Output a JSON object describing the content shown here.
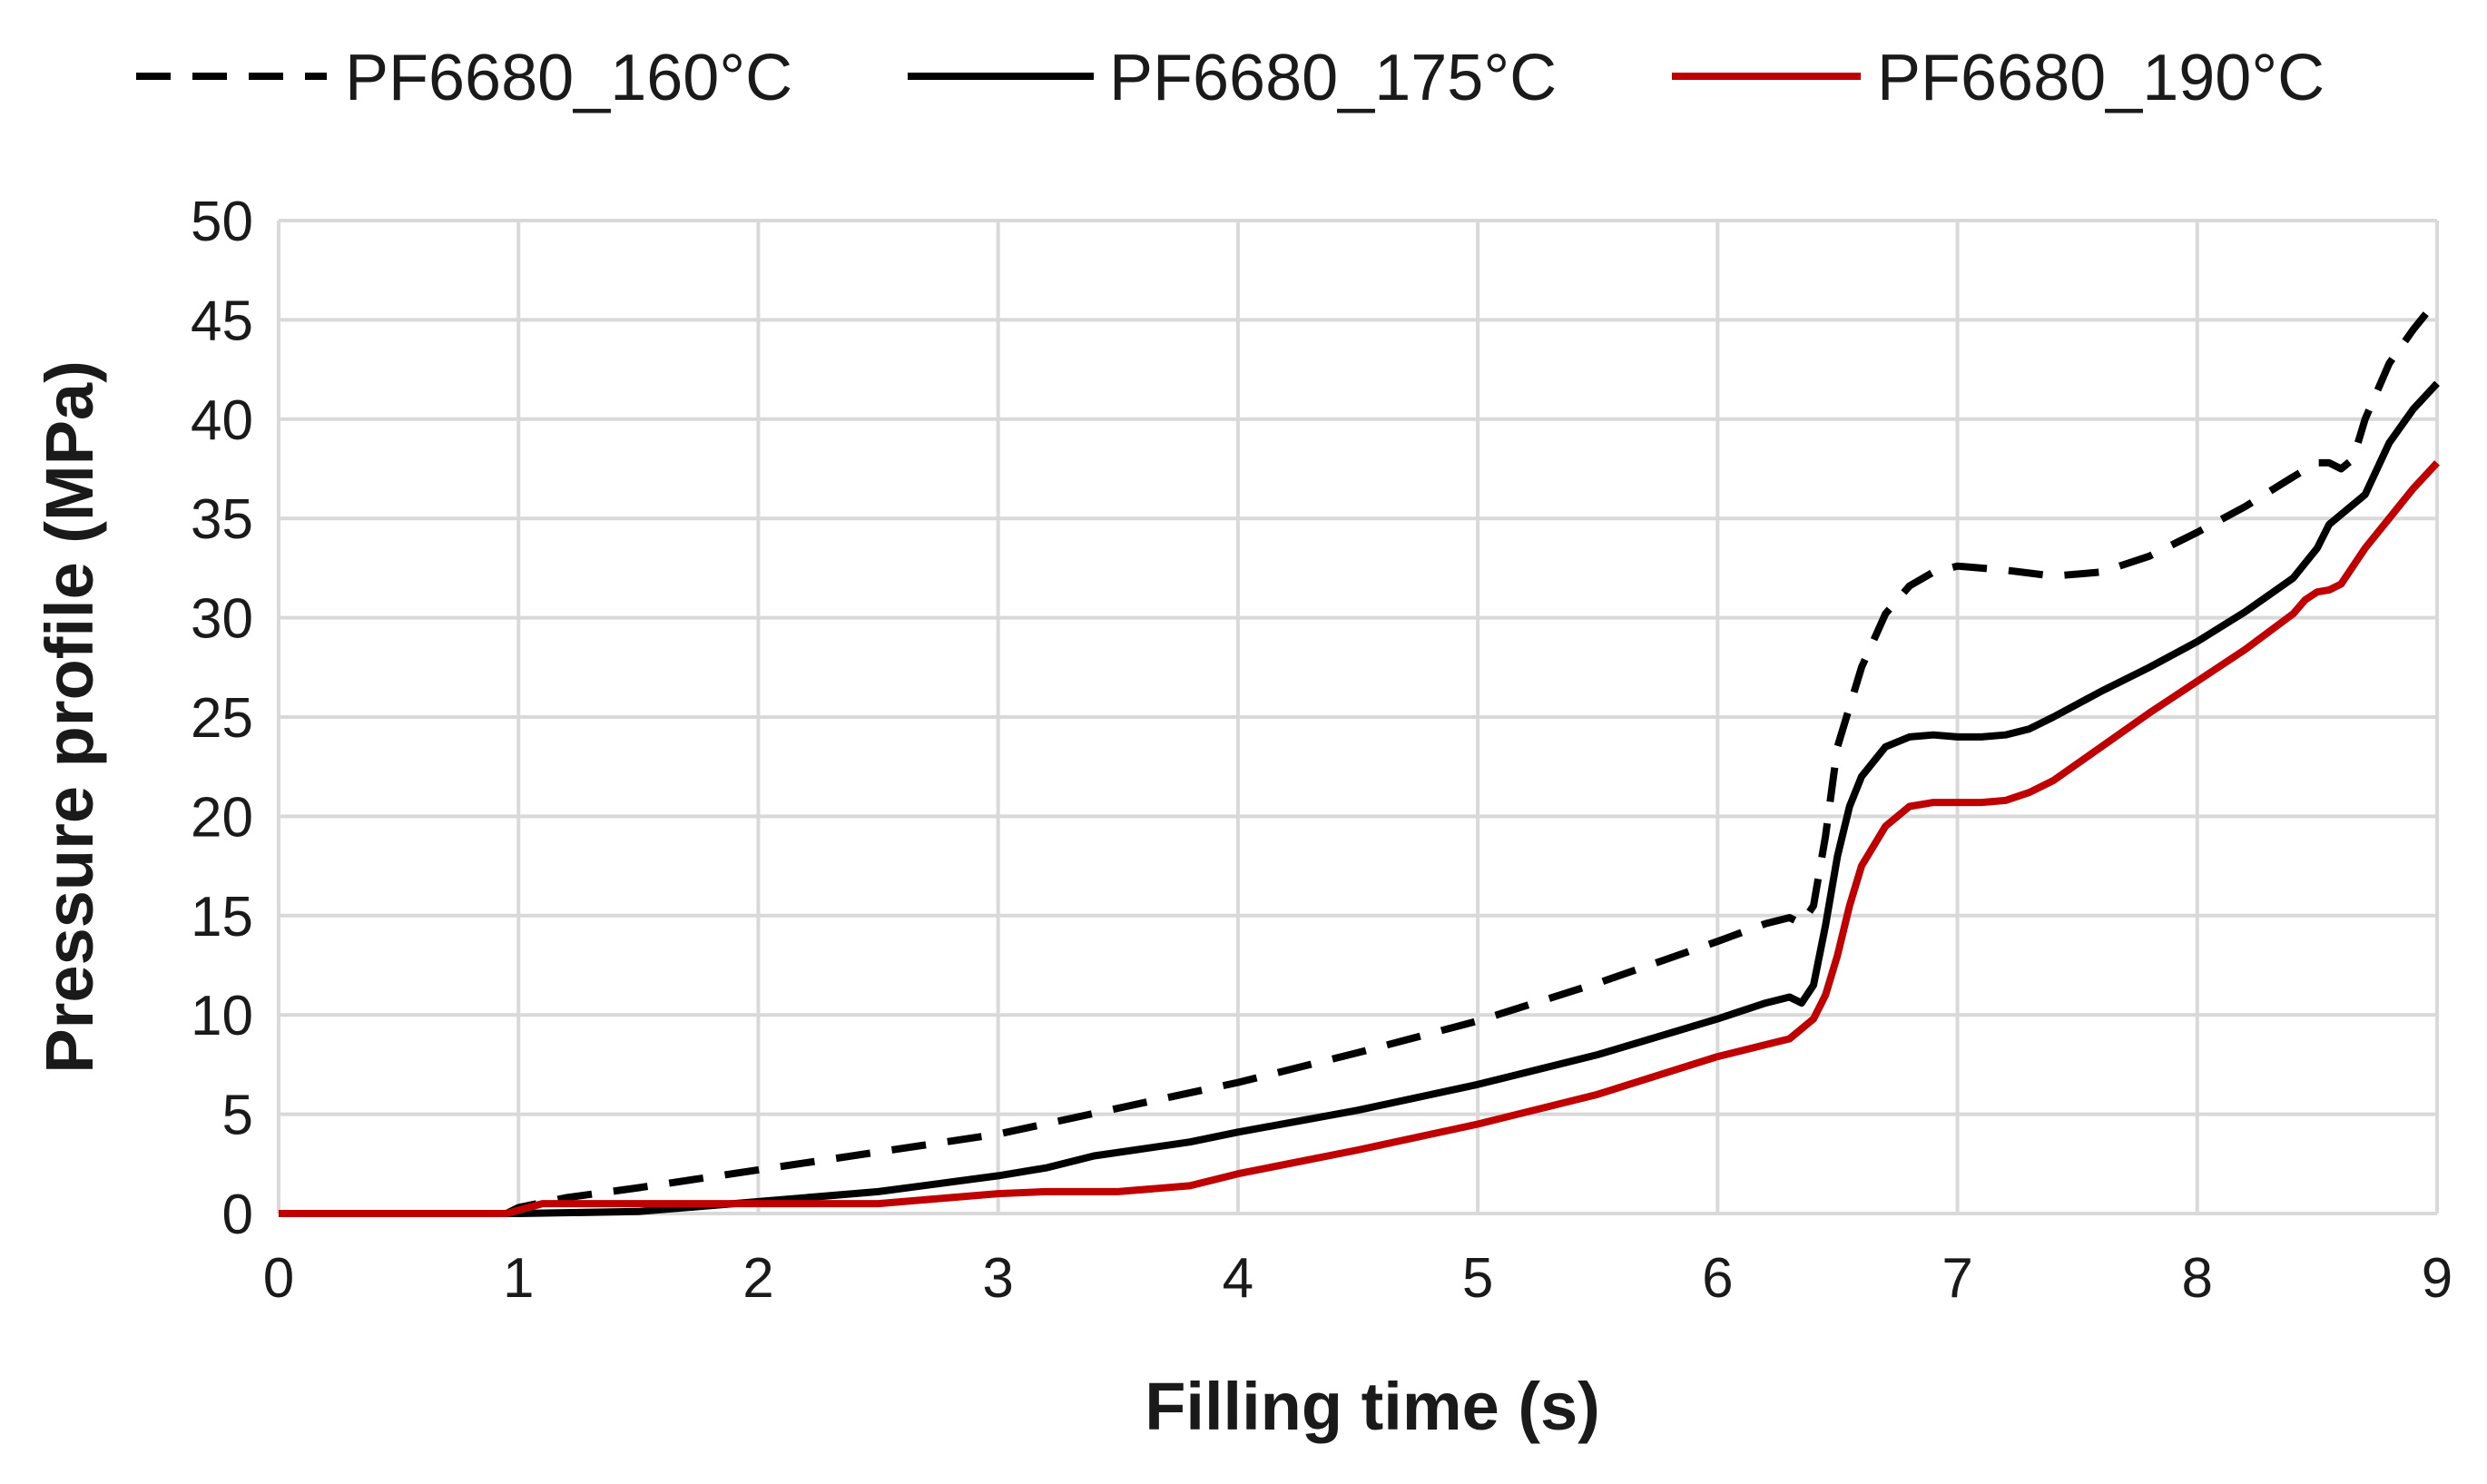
{
  "chart_data": {
    "type": "line",
    "title": "",
    "xlabel": "Filling time (s)",
    "ylabel": "Pressure profile (MPa)",
    "xlim": [
      0,
      9
    ],
    "ylim": [
      0,
      50
    ],
    "x_ticks": [
      "0",
      "1",
      "2",
      "3",
      "4",
      "5",
      "6",
      "7",
      "8",
      "9"
    ],
    "y_ticks": [
      "0",
      "5",
      "10",
      "15",
      "20",
      "25",
      "30",
      "35",
      "40",
      "45",
      "50"
    ],
    "grid": true,
    "legend_position": "top",
    "series": [
      {
        "name": "PF6680_160°C",
        "color": "#000000",
        "style": "dashed",
        "x": [
          0,
          0.95,
          1.0,
          1.2,
          1.5,
          2.0,
          2.5,
          3.0,
          3.5,
          4.0,
          4.5,
          5.0,
          5.5,
          6.0,
          6.2,
          6.3,
          6.35,
          6.4,
          6.45,
          6.5,
          6.6,
          6.7,
          6.8,
          6.9,
          7.0,
          7.2,
          7.4,
          7.6,
          7.8,
          8.0,
          8.2,
          8.4,
          8.5,
          8.55,
          8.6,
          8.65,
          8.7,
          8.8,
          8.9,
          9.0
        ],
        "y": [
          0,
          0,
          0.3,
          0.8,
          1.3,
          2.2,
          3.1,
          4.0,
          5.3,
          6.6,
          8.1,
          9.7,
          11.6,
          13.7,
          14.6,
          14.9,
          14.6,
          15.5,
          19.0,
          23.5,
          27.5,
          30.2,
          31.6,
          32.3,
          32.6,
          32.4,
          32.1,
          32.3,
          33.1,
          34.3,
          35.6,
          37.1,
          37.8,
          37.8,
          37.5,
          38.0,
          40.0,
          42.8,
          44.5,
          46.0
        ]
      },
      {
        "name": "PF6680_175°C",
        "color": "#000000",
        "style": "solid",
        "x": [
          0,
          1.0,
          1.5,
          2.0,
          2.5,
          3.0,
          3.2,
          3.4,
          3.8,
          4.0,
          4.5,
          5.0,
          5.5,
          6.0,
          6.2,
          6.3,
          6.35,
          6.4,
          6.45,
          6.5,
          6.55,
          6.6,
          6.7,
          6.8,
          6.9,
          7.0,
          7.1,
          7.2,
          7.3,
          7.4,
          7.6,
          7.8,
          8.0,
          8.2,
          8.4,
          8.5,
          8.55,
          8.6,
          8.7,
          8.8,
          8.9,
          9.0
        ],
        "y": [
          0,
          0,
          0.1,
          0.6,
          1.1,
          1.9,
          2.3,
          2.9,
          3.6,
          4.1,
          5.2,
          6.5,
          8.0,
          9.8,
          10.6,
          10.9,
          10.6,
          11.5,
          14.5,
          18.0,
          20.5,
          22.0,
          23.5,
          24.0,
          24.1,
          24.0,
          24.0,
          24.1,
          24.4,
          25.0,
          26.3,
          27.5,
          28.8,
          30.3,
          32.0,
          33.5,
          34.7,
          35.2,
          36.2,
          38.8,
          40.5,
          41.8
        ]
      },
      {
        "name": "PF6680_190°C",
        "color": "#c00000",
        "style": "solid",
        "x": [
          0,
          0.95,
          1.1,
          1.5,
          2.0,
          2.5,
          3.0,
          3.2,
          3.5,
          3.8,
          4.0,
          4.5,
          5.0,
          5.5,
          6.0,
          6.2,
          6.3,
          6.4,
          6.45,
          6.5,
          6.55,
          6.6,
          6.7,
          6.8,
          6.9,
          7.0,
          7.1,
          7.2,
          7.3,
          7.4,
          7.6,
          7.8,
          8.0,
          8.2,
          8.4,
          8.45,
          8.5,
          8.55,
          8.6,
          8.7,
          8.8,
          8.9,
          9.0
        ],
        "y": [
          0,
          0,
          0.5,
          0.5,
          0.5,
          0.5,
          1.0,
          1.1,
          1.1,
          1.4,
          2.0,
          3.2,
          4.5,
          6.0,
          7.9,
          8.5,
          8.8,
          9.8,
          11.0,
          13.0,
          15.5,
          17.5,
          19.5,
          20.5,
          20.7,
          20.7,
          20.7,
          20.8,
          21.2,
          21.8,
          23.5,
          25.2,
          26.8,
          28.4,
          30.2,
          30.9,
          31.3,
          31.4,
          31.7,
          33.5,
          35.0,
          36.5,
          37.8
        ]
      }
    ]
  }
}
